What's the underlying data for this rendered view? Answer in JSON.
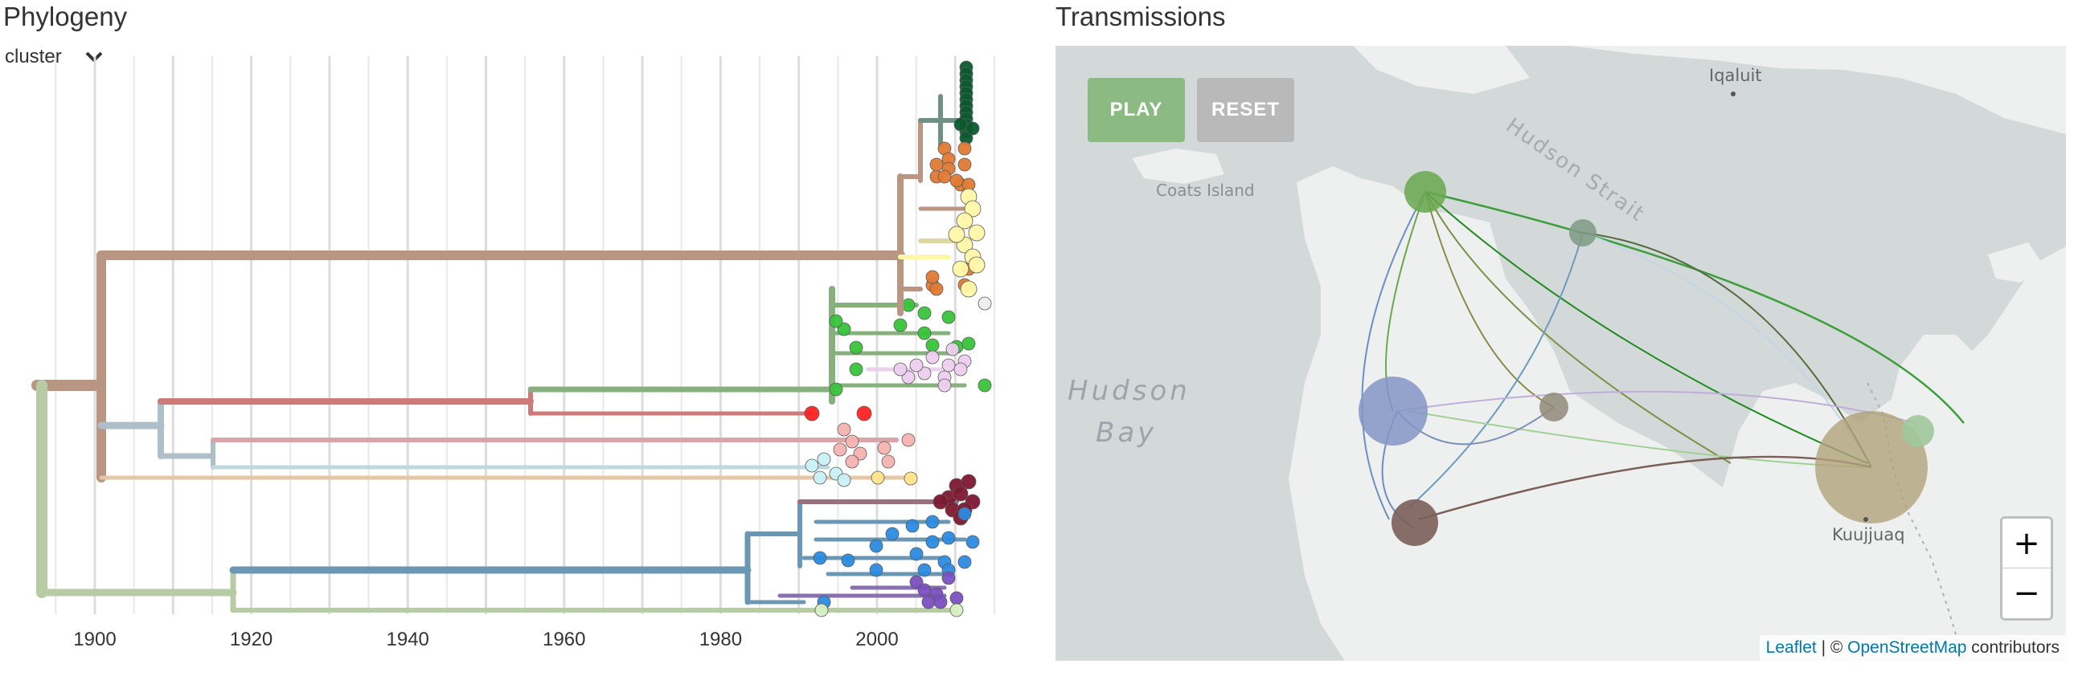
{
  "phylogeny": {
    "title": "Phylogeny",
    "color_by": "cluster",
    "axis_ticks": [
      "1900",
      "1920",
      "1940",
      "1960",
      "1980",
      "2000"
    ],
    "colors": {
      "root": "#b89683",
      "green_light": "#b7cba4",
      "blue_gray": "#aebfc9",
      "red": "#cd7a78",
      "green": "#86b17c",
      "pink": "#d9a5a8",
      "light_blue": "#bfd9e3",
      "tan": "#e3c7a6",
      "blue": "#6b97b5",
      "orange": "#e07a34",
      "yellow": "#fff7a8",
      "dark_green": "#0a5a2e",
      "bright_green": "#37c43a",
      "lavender": "#edcfee",
      "maroon": "#7d1730",
      "purple": "#7a4fc1",
      "tip_blue": "#2b8be0",
      "tip_red": "#ff2222",
      "tip_salmon": "#f5b2b0",
      "tip_cyan": "#c8f1f7",
      "tip_yellow": "#ffe48a"
    }
  },
  "transmissions": {
    "title": "Transmissions",
    "play_label": "PLAY",
    "reset_label": "RESET",
    "zoom_in_label": "+",
    "zoom_out_label": "−",
    "map_labels": {
      "iqaluit": "Iqaluit",
      "hudson_strait": "Hudson Strait",
      "coats_island": "Coats Island",
      "hudson": "Hudson",
      "bay": "Bay",
      "kuujjuaq": "Kuujjuaq"
    },
    "attribution": {
      "leaflet": "Leaflet",
      "separator": " | © ",
      "osm": "OpenStreetMap",
      "suffix": " contributors"
    },
    "node_colors": {
      "north_green": "#67a84d",
      "gray_green": "#7f9a86",
      "blue": "#8495c6",
      "olive": "#8f8a78",
      "brown": "#7a5e58",
      "big_tan": "#b0a27b",
      "east_green": "#9fc79a"
    }
  }
}
